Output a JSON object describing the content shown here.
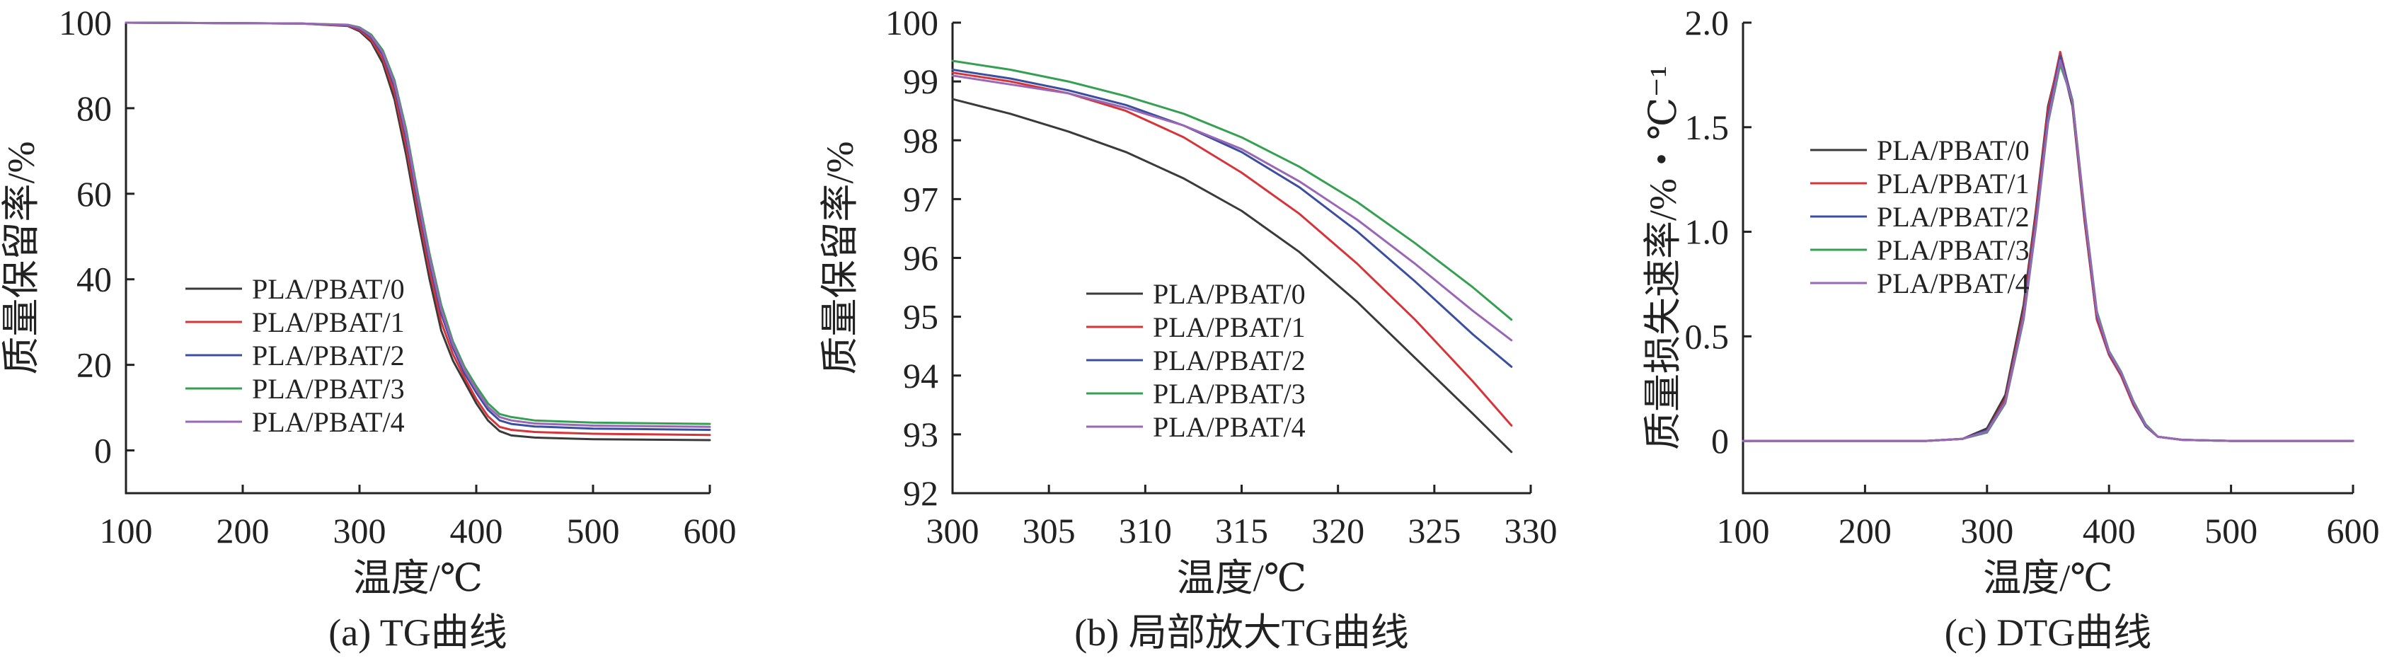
{
  "chart_data": [
    {
      "type": "line",
      "caption": "(a) TG曲线",
      "xlabel": "温度/℃",
      "ylabel": "质量保留率/%",
      "xlim": [
        100,
        600
      ],
      "ylim": [
        -10,
        100
      ],
      "xticks": [
        100,
        200,
        300,
        400,
        500,
        600
      ],
      "yticks": [
        0,
        20,
        40,
        60,
        80,
        100
      ],
      "legend_position": "center-left",
      "series": [
        {
          "name": "PLA/PBAT/0",
          "color": "#3a3a3a",
          "x": [
            100,
            250,
            290,
            300,
            310,
            320,
            330,
            340,
            350,
            360,
            370,
            380,
            390,
            400,
            410,
            420,
            430,
            450,
            500,
            600
          ],
          "y": [
            100,
            99.8,
            99.2,
            98,
            95.5,
            90.5,
            82,
            69,
            54,
            40,
            28,
            21,
            16,
            11,
            7,
            4.5,
            3.5,
            3,
            2.6,
            2.4
          ]
        },
        {
          "name": "PLA/PBAT/1",
          "color": "#d7343a",
          "x": [
            100,
            250,
            290,
            300,
            310,
            320,
            330,
            340,
            350,
            360,
            370,
            380,
            390,
            400,
            410,
            420,
            430,
            450,
            500,
            600
          ],
          "y": [
            100,
            99.8,
            99.3,
            98.3,
            96,
            91.5,
            83.5,
            71,
            56,
            42,
            30,
            22.5,
            17,
            12,
            8,
            5.5,
            4.8,
            4.3,
            3.9,
            3.6
          ]
        },
        {
          "name": "PLA/PBAT/2",
          "color": "#3b4fa0",
          "x": [
            100,
            250,
            290,
            300,
            310,
            320,
            330,
            340,
            350,
            360,
            370,
            380,
            390,
            400,
            410,
            420,
            430,
            450,
            500,
            600
          ],
          "y": [
            100,
            99.8,
            99.4,
            98.6,
            96.6,
            92.5,
            85,
            73,
            58,
            44,
            32,
            24,
            18,
            13.5,
            9.5,
            7,
            6.2,
            5.6,
            5.1,
            4.8
          ]
        },
        {
          "name": "PLA/PBAT/3",
          "color": "#35a052",
          "x": [
            100,
            250,
            290,
            300,
            310,
            320,
            330,
            340,
            350,
            360,
            370,
            380,
            390,
            400,
            410,
            420,
            430,
            450,
            500,
            600
          ],
          "y": [
            100,
            99.8,
            99.5,
            98.9,
            97.2,
            93.5,
            86.5,
            75,
            60,
            46,
            34,
            25.5,
            19.5,
            15,
            11,
            8.5,
            7.8,
            7,
            6.5,
            6.2
          ]
        },
        {
          "name": "PLA/PBAT/4",
          "color": "#9a66b6",
          "x": [
            100,
            250,
            290,
            300,
            310,
            320,
            330,
            340,
            350,
            360,
            370,
            380,
            390,
            400,
            410,
            420,
            430,
            450,
            500,
            600
          ],
          "y": [
            100,
            99.8,
            99.45,
            98.8,
            96.9,
            93,
            85.8,
            74,
            59,
            45,
            33,
            24.8,
            18.8,
            14.2,
            10.2,
            7.8,
            7,
            6.3,
            5.8,
            5.5
          ]
        }
      ]
    },
    {
      "type": "line",
      "caption": "(b) 局部放大TG曲线",
      "xlabel": "温度/℃",
      "ylabel": "质量保留率/%",
      "xlim": [
        300,
        330
      ],
      "ylim": [
        92,
        100
      ],
      "xticks": [
        300,
        305,
        310,
        315,
        320,
        325,
        330
      ],
      "yticks": [
        92,
        93,
        94,
        95,
        96,
        97,
        98,
        99,
        100
      ],
      "legend_position": "bottom-center",
      "series": [
        {
          "name": "PLA/PBAT/0",
          "color": "#3a3a3a",
          "x": [
            300,
            303,
            306,
            309,
            312,
            315,
            318,
            321,
            324,
            327,
            329
          ],
          "y": [
            98.7,
            98.45,
            98.15,
            97.8,
            97.35,
            96.8,
            96.1,
            95.25,
            94.3,
            93.35,
            92.7
          ]
        },
        {
          "name": "PLA/PBAT/1",
          "color": "#d7343a",
          "x": [
            300,
            303,
            306,
            309,
            312,
            315,
            318,
            321,
            324,
            327,
            329
          ],
          "y": [
            99.15,
            99.0,
            98.8,
            98.5,
            98.05,
            97.45,
            96.75,
            95.9,
            94.95,
            93.9,
            93.15
          ]
        },
        {
          "name": "PLA/PBAT/2",
          "color": "#3b4fa0",
          "x": [
            300,
            303,
            306,
            309,
            312,
            315,
            318,
            321,
            324,
            327,
            329
          ],
          "y": [
            99.2,
            99.05,
            98.85,
            98.6,
            98.25,
            97.8,
            97.2,
            96.45,
            95.6,
            94.7,
            94.15
          ]
        },
        {
          "name": "PLA/PBAT/3",
          "color": "#35a052",
          "x": [
            300,
            303,
            306,
            309,
            312,
            315,
            318,
            321,
            324,
            327,
            329
          ],
          "y": [
            99.35,
            99.2,
            99.0,
            98.75,
            98.45,
            98.05,
            97.55,
            96.95,
            96.25,
            95.5,
            94.95
          ]
        },
        {
          "name": "PLA/PBAT/4",
          "color": "#9a66b6",
          "x": [
            300,
            303,
            306,
            309,
            312,
            315,
            318,
            321,
            324,
            327,
            329
          ],
          "y": [
            99.1,
            98.95,
            98.8,
            98.55,
            98.25,
            97.85,
            97.3,
            96.65,
            95.9,
            95.1,
            94.6
          ]
        }
      ]
    },
    {
      "type": "line",
      "caption": "(c) DTG曲线",
      "xlabel": "温度/℃",
      "ylabel": "质量损失速率/%・℃⁻¹",
      "xlim": [
        100,
        600
      ],
      "ylim": [
        -0.25,
        2.0
      ],
      "xticks": [
        100,
        200,
        300,
        400,
        500,
        600
      ],
      "yticks": [
        0,
        0.5,
        1.0,
        1.5,
        2.0
      ],
      "yticklabels": [
        "0",
        "0.5",
        "1.0",
        "1.5",
        "2.0"
      ],
      "legend_position": "top-left",
      "series": [
        {
          "name": "PLA/PBAT/0",
          "color": "#3a3a3a",
          "x": [
            100,
            250,
            280,
            300,
            315,
            330,
            340,
            350,
            360,
            370,
            380,
            390,
            400,
            410,
            420,
            430,
            440,
            460,
            500,
            600
          ],
          "y": [
            0,
            0,
            0.01,
            0.06,
            0.22,
            0.65,
            1.1,
            1.6,
            1.84,
            1.6,
            1.05,
            0.58,
            0.42,
            0.32,
            0.18,
            0.07,
            0.02,
            0.005,
            0,
            0
          ]
        },
        {
          "name": "PLA/PBAT/1",
          "color": "#d7343a",
          "x": [
            100,
            250,
            280,
            300,
            315,
            330,
            340,
            350,
            360,
            370,
            380,
            390,
            400,
            410,
            420,
            430,
            440,
            460,
            500,
            600
          ],
          "y": [
            0,
            0,
            0.01,
            0.05,
            0.2,
            0.62,
            1.08,
            1.58,
            1.86,
            1.62,
            1.06,
            0.58,
            0.41,
            0.31,
            0.17,
            0.07,
            0.02,
            0.005,
            0,
            0
          ]
        },
        {
          "name": "PLA/PBAT/2",
          "color": "#3b4fa0",
          "x": [
            100,
            250,
            280,
            300,
            315,
            330,
            340,
            350,
            360,
            370,
            380,
            390,
            400,
            410,
            420,
            430,
            440,
            460,
            500,
            600
          ],
          "y": [
            0,
            0,
            0.01,
            0.05,
            0.19,
            0.6,
            1.05,
            1.55,
            1.84,
            1.63,
            1.08,
            0.6,
            0.42,
            0.32,
            0.18,
            0.07,
            0.02,
            0.005,
            0,
            0
          ]
        },
        {
          "name": "PLA/PBAT/3",
          "color": "#35a052",
          "x": [
            100,
            250,
            280,
            300,
            315,
            330,
            340,
            350,
            360,
            370,
            380,
            390,
            400,
            410,
            420,
            430,
            440,
            460,
            500,
            600
          ],
          "y": [
            0,
            0,
            0.01,
            0.04,
            0.18,
            0.58,
            1.02,
            1.52,
            1.8,
            1.63,
            1.1,
            0.62,
            0.43,
            0.33,
            0.19,
            0.08,
            0.02,
            0.005,
            0,
            0
          ]
        },
        {
          "name": "PLA/PBAT/4",
          "color": "#9a66b6",
          "x": [
            100,
            250,
            280,
            300,
            315,
            330,
            340,
            350,
            360,
            370,
            380,
            390,
            400,
            410,
            420,
            430,
            440,
            460,
            500,
            600
          ],
          "y": [
            0,
            0,
            0.01,
            0.045,
            0.185,
            0.59,
            1.03,
            1.53,
            1.82,
            1.62,
            1.09,
            0.61,
            0.425,
            0.325,
            0.185,
            0.075,
            0.02,
            0.005,
            0,
            0
          ]
        }
      ]
    }
  ]
}
